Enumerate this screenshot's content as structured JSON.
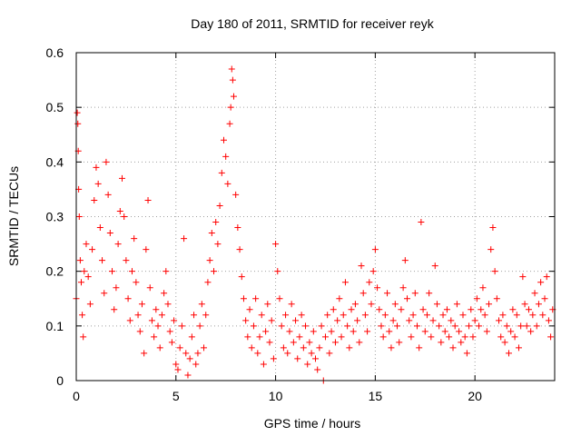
{
  "chart_data": {
    "type": "scatter",
    "title": "Day 180 of 2011, SRMTID for receiver reyk",
    "xlabel": "GPS time / hours",
    "ylabel": "SRMTID / TECUs",
    "xlim": [
      0,
      24
    ],
    "ylim": [
      0,
      0.6
    ],
    "xticks": [
      0,
      5,
      10,
      15,
      20
    ],
    "xtick_labels": [
      "0",
      "5",
      "10",
      "15",
      "20"
    ],
    "yticks": [
      0,
      0.1,
      0.2,
      0.3,
      0.4,
      0.5,
      0.6
    ],
    "ytick_labels": [
      "0",
      "0.1",
      "0.2",
      "0.3",
      "0.4",
      "0.5",
      "0.6"
    ],
    "grid": true,
    "marker": "plus",
    "color": "#ff0000",
    "series": [
      {
        "name": "SRMTID",
        "points": [
          [
            0.0,
            0.15
          ],
          [
            0.05,
            0.49
          ],
          [
            0.08,
            0.47
          ],
          [
            0.1,
            0.42
          ],
          [
            0.12,
            0.35
          ],
          [
            0.15,
            0.3
          ],
          [
            0.2,
            0.22
          ],
          [
            0.25,
            0.18
          ],
          [
            0.3,
            0.12
          ],
          [
            0.35,
            0.08
          ],
          [
            0.4,
            0.2
          ],
          [
            0.5,
            0.25
          ],
          [
            0.6,
            0.19
          ],
          [
            0.7,
            0.14
          ],
          [
            0.8,
            0.24
          ],
          [
            0.9,
            0.33
          ],
          [
            1.0,
            0.39
          ],
          [
            1.1,
            0.36
          ],
          [
            1.2,
            0.28
          ],
          [
            1.3,
            0.22
          ],
          [
            1.4,
            0.16
          ],
          [
            1.5,
            0.4
          ],
          [
            1.6,
            0.34
          ],
          [
            1.7,
            0.27
          ],
          [
            1.8,
            0.2
          ],
          [
            1.9,
            0.13
          ],
          [
            2.0,
            0.17
          ],
          [
            2.1,
            0.25
          ],
          [
            2.2,
            0.31
          ],
          [
            2.3,
            0.37
          ],
          [
            2.4,
            0.3
          ],
          [
            2.5,
            0.22
          ],
          [
            2.6,
            0.15
          ],
          [
            2.7,
            0.11
          ],
          [
            2.8,
            0.2
          ],
          [
            2.9,
            0.26
          ],
          [
            3.0,
            0.18
          ],
          [
            3.1,
            0.12
          ],
          [
            3.2,
            0.09
          ],
          [
            3.3,
            0.14
          ],
          [
            3.4,
            0.05
          ],
          [
            3.5,
            0.24
          ],
          [
            3.6,
            0.33
          ],
          [
            3.7,
            0.17
          ],
          [
            3.8,
            0.11
          ],
          [
            3.9,
            0.08
          ],
          [
            4.0,
            0.13
          ],
          [
            4.1,
            0.1
          ],
          [
            4.2,
            0.06
          ],
          [
            4.3,
            0.12
          ],
          [
            4.4,
            0.16
          ],
          [
            4.5,
            0.2
          ],
          [
            4.6,
            0.14
          ],
          [
            4.7,
            0.09
          ],
          [
            4.8,
            0.07
          ],
          [
            4.9,
            0.11
          ],
          [
            5.0,
            0.03
          ],
          [
            5.1,
            0.02
          ],
          [
            5.2,
            0.06
          ],
          [
            5.3,
            0.1
          ],
          [
            5.4,
            0.26
          ],
          [
            5.5,
            0.05
          ],
          [
            5.6,
            0.01
          ],
          [
            5.7,
            0.04
          ],
          [
            5.8,
            0.08
          ],
          [
            5.9,
            0.12
          ],
          [
            6.0,
            0.03
          ],
          [
            6.1,
            0.05
          ],
          [
            6.2,
            0.1
          ],
          [
            6.3,
            0.14
          ],
          [
            6.4,
            0.06
          ],
          [
            6.5,
            0.12
          ],
          [
            6.6,
            0.18
          ],
          [
            6.7,
            0.22
          ],
          [
            6.8,
            0.27
          ],
          [
            6.9,
            0.2
          ],
          [
            7.0,
            0.29
          ],
          [
            7.1,
            0.25
          ],
          [
            7.2,
            0.32
          ],
          [
            7.3,
            0.38
          ],
          [
            7.4,
            0.44
          ],
          [
            7.5,
            0.41
          ],
          [
            7.6,
            0.36
          ],
          [
            7.7,
            0.47
          ],
          [
            7.75,
            0.5
          ],
          [
            7.8,
            0.57
          ],
          [
            7.85,
            0.55
          ],
          [
            7.9,
            0.52
          ],
          [
            8.0,
            0.34
          ],
          [
            8.1,
            0.28
          ],
          [
            8.2,
            0.24
          ],
          [
            8.3,
            0.19
          ],
          [
            8.4,
            0.15
          ],
          [
            8.5,
            0.11
          ],
          [
            8.6,
            0.08
          ],
          [
            8.7,
            0.13
          ],
          [
            8.8,
            0.06
          ],
          [
            8.9,
            0.1
          ],
          [
            9.0,
            0.15
          ],
          [
            9.1,
            0.05
          ],
          [
            9.2,
            0.08
          ],
          [
            9.3,
            0.12
          ],
          [
            9.4,
            0.03
          ],
          [
            9.5,
            0.09
          ],
          [
            9.6,
            0.14
          ],
          [
            9.7,
            0.07
          ],
          [
            9.8,
            0.11
          ],
          [
            9.9,
            0.04
          ],
          [
            10.0,
            0.25
          ],
          [
            10.1,
            0.2
          ],
          [
            10.2,
            0.15
          ],
          [
            10.3,
            0.1
          ],
          [
            10.4,
            0.06
          ],
          [
            10.5,
            0.12
          ],
          [
            10.6,
            0.05
          ],
          [
            10.7,
            0.09
          ],
          [
            10.8,
            0.14
          ],
          [
            10.9,
            0.07
          ],
          [
            11.0,
            0.11
          ],
          [
            11.1,
            0.04
          ],
          [
            11.2,
            0.08
          ],
          [
            11.3,
            0.12
          ],
          [
            11.4,
            0.06
          ],
          [
            11.5,
            0.1
          ],
          [
            11.6,
            0.03
          ],
          [
            11.7,
            0.07
          ],
          [
            11.8,
            0.05
          ],
          [
            11.9,
            0.09
          ],
          [
            12.0,
            0.04
          ],
          [
            12.1,
            0.02
          ],
          [
            12.2,
            0.06
          ],
          [
            12.3,
            0.1
          ],
          [
            12.4,
            0.0
          ],
          [
            12.5,
            0.08
          ],
          [
            12.6,
            0.12
          ],
          [
            12.7,
            0.05
          ],
          [
            12.8,
            0.09
          ],
          [
            12.9,
            0.13
          ],
          [
            13.0,
            0.07
          ],
          [
            13.1,
            0.11
          ],
          [
            13.2,
            0.15
          ],
          [
            13.3,
            0.08
          ],
          [
            13.4,
            0.12
          ],
          [
            13.5,
            0.18
          ],
          [
            13.6,
            0.1
          ],
          [
            13.7,
            0.06
          ],
          [
            13.8,
            0.13
          ],
          [
            13.9,
            0.09
          ],
          [
            14.0,
            0.14
          ],
          [
            14.1,
            0.11
          ],
          [
            14.2,
            0.07
          ],
          [
            14.3,
            0.21
          ],
          [
            14.4,
            0.16
          ],
          [
            14.5,
            0.12
          ],
          [
            14.6,
            0.09
          ],
          [
            14.7,
            0.18
          ],
          [
            14.8,
            0.14
          ],
          [
            14.9,
            0.2
          ],
          [
            15.0,
            0.24
          ],
          [
            15.1,
            0.17
          ],
          [
            15.2,
            0.13
          ],
          [
            15.3,
            0.1
          ],
          [
            15.4,
            0.08
          ],
          [
            15.5,
            0.12
          ],
          [
            15.6,
            0.16
          ],
          [
            15.7,
            0.09
          ],
          [
            15.8,
            0.06
          ],
          [
            15.9,
            0.11
          ],
          [
            16.0,
            0.14
          ],
          [
            16.1,
            0.1
          ],
          [
            16.2,
            0.07
          ],
          [
            16.3,
            0.13
          ],
          [
            16.4,
            0.17
          ],
          [
            16.5,
            0.22
          ],
          [
            16.6,
            0.15
          ],
          [
            16.7,
            0.11
          ],
          [
            16.8,
            0.08
          ],
          [
            16.9,
            0.12
          ],
          [
            17.0,
            0.16
          ],
          [
            17.1,
            0.1
          ],
          [
            17.2,
            0.06
          ],
          [
            17.3,
            0.29
          ],
          [
            17.4,
            0.13
          ],
          [
            17.5,
            0.09
          ],
          [
            17.6,
            0.12
          ],
          [
            17.7,
            0.16
          ],
          [
            17.8,
            0.08
          ],
          [
            17.9,
            0.11
          ],
          [
            18.0,
            0.21
          ],
          [
            18.1,
            0.14
          ],
          [
            18.2,
            0.1
          ],
          [
            18.3,
            0.07
          ],
          [
            18.4,
            0.12
          ],
          [
            18.5,
            0.09
          ],
          [
            18.6,
            0.13
          ],
          [
            18.7,
            0.08
          ],
          [
            18.8,
            0.11
          ],
          [
            18.9,
            0.06
          ],
          [
            19.0,
            0.1
          ],
          [
            19.1,
            0.14
          ],
          [
            19.2,
            0.09
          ],
          [
            19.3,
            0.07
          ],
          [
            19.4,
            0.12
          ],
          [
            19.5,
            0.08
          ],
          [
            19.6,
            0.05
          ],
          [
            19.7,
            0.1
          ],
          [
            19.8,
            0.13
          ],
          [
            19.9,
            0.08
          ],
          [
            20.0,
            0.11
          ],
          [
            20.1,
            0.15
          ],
          [
            20.2,
            0.1
          ],
          [
            20.3,
            0.13
          ],
          [
            20.4,
            0.17
          ],
          [
            20.5,
            0.12
          ],
          [
            20.6,
            0.09
          ],
          [
            20.7,
            0.14
          ],
          [
            20.8,
            0.24
          ],
          [
            20.9,
            0.28
          ],
          [
            21.0,
            0.2
          ],
          [
            21.1,
            0.15
          ],
          [
            21.2,
            0.11
          ],
          [
            21.3,
            0.08
          ],
          [
            21.4,
            0.12
          ],
          [
            21.5,
            0.07
          ],
          [
            21.6,
            0.1
          ],
          [
            21.7,
            0.05
          ],
          [
            21.8,
            0.09
          ],
          [
            21.9,
            0.13
          ],
          [
            22.0,
            0.08
          ],
          [
            22.1,
            0.12
          ],
          [
            22.2,
            0.06
          ],
          [
            22.3,
            0.1
          ],
          [
            22.4,
            0.19
          ],
          [
            22.5,
            0.14
          ],
          [
            22.6,
            0.1
          ],
          [
            22.7,
            0.13
          ],
          [
            22.8,
            0.09
          ],
          [
            22.9,
            0.12
          ],
          [
            23.0,
            0.16
          ],
          [
            23.1,
            0.1
          ],
          [
            23.2,
            0.14
          ],
          [
            23.3,
            0.18
          ],
          [
            23.4,
            0.12
          ],
          [
            23.5,
            0.15
          ],
          [
            23.6,
            0.19
          ],
          [
            23.7,
            0.11
          ],
          [
            23.8,
            0.08
          ],
          [
            23.9,
            0.13
          ]
        ]
      }
    ]
  }
}
